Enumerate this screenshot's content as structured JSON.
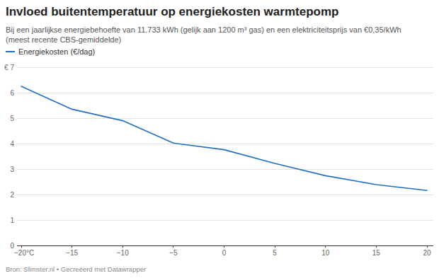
{
  "chart_data": {
    "type": "line",
    "title": "Invloed buitentemperatuur op energiekosten warmtepomp",
    "subtitle": "Bij een jaarlijkse energiebehoefte van 11.733 kWh (gelijk aan 1200 m³ gas) en een elektriciteitsprijs van €0,35/kWh (meest recente CBS-gemiddelde)",
    "source": "Bron: Slimster.nl • Gecreëerd met Datawrapper",
    "x": [
      -20,
      -15,
      -10,
      -5,
      0,
      5,
      10,
      15,
      20
    ],
    "series": [
      {
        "name": "Energiekosten (€/dag)",
        "color": "#1f6fc5",
        "values": [
          6.25,
          5.35,
          4.9,
          4.02,
          3.76,
          3.22,
          2.74,
          2.39,
          2.16
        ]
      }
    ],
    "xlim": [
      -20,
      20
    ],
    "ylim": [
      0,
      7
    ],
    "xticks": [
      {
        "value": -20,
        "label": "−20°C"
      },
      {
        "value": -15,
        "label": "−15"
      },
      {
        "value": -10,
        "label": "−10"
      },
      {
        "value": -5,
        "label": "−5"
      },
      0,
      5,
      10,
      15,
      20
    ],
    "yticks": [
      {
        "value": 7,
        "label": "€ 7"
      },
      6,
      5,
      4,
      3,
      2,
      1,
      0
    ],
    "grid": true,
    "legend": "top-left"
  }
}
